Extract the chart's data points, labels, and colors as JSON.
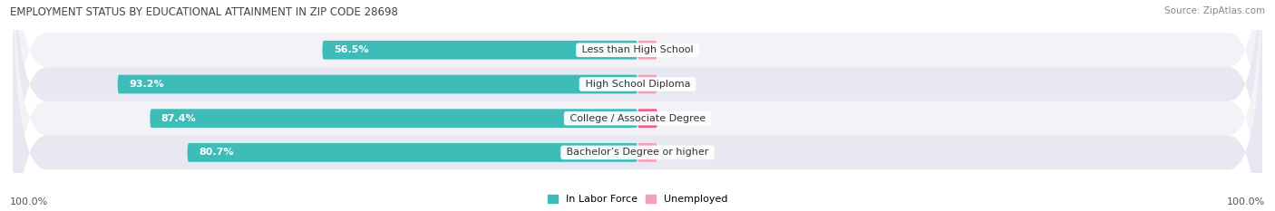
{
  "title": "EMPLOYMENT STATUS BY EDUCATIONAL ATTAINMENT IN ZIP CODE 28698",
  "source": "Source: ZipAtlas.com",
  "categories": [
    "Less than High School",
    "High School Diploma",
    "College / Associate Degree",
    "Bachelor’s Degree or higher"
  ],
  "in_labor_force": [
    56.5,
    93.2,
    87.4,
    80.7
  ],
  "unemployed": [
    0.0,
    0.0,
    3.6,
    0.0
  ],
  "labor_force_color": "#3DBCB8",
  "unemployed_color_low": "#F4A0B5",
  "unemployed_color_high": "#EF5B8B",
  "row_bg_color_light": "#F2F2F7",
  "row_bg_color_dark": "#E8E8F2",
  "label_color": "#555555",
  "title_color": "#444444",
  "source_color": "#888888",
  "legend_labor": "In Labor Force",
  "legend_unemployed": "Unemployed",
  "left_label": "100.0%",
  "right_label": "100.0%",
  "figsize": [
    14.06,
    2.33
  ],
  "dpi": 100
}
